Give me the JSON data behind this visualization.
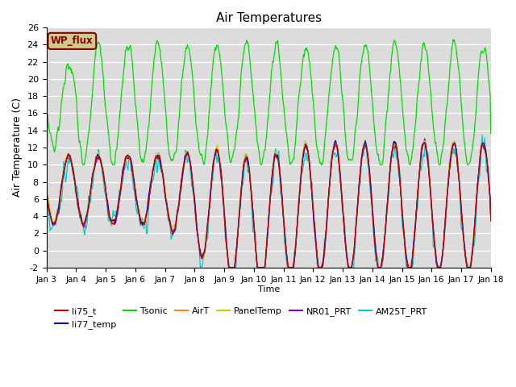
{
  "title": "Air Temperatures",
  "xlabel": "Time",
  "ylabel": "Air Temperature (C)",
  "ylim": [
    -2,
    26
  ],
  "yticks": [
    -2,
    0,
    2,
    4,
    6,
    8,
    10,
    12,
    14,
    16,
    18,
    20,
    22,
    24,
    26
  ],
  "xlim": [
    0,
    15
  ],
  "xtick_labels": [
    "Jan 3",
    "Jan 4",
    "Jan 5",
    "Jan 6",
    "Jan 7",
    "Jan 8",
    "Jan 9",
    "Jan 10",
    "Jan 11",
    "Jan 12",
    "Jan 13",
    "Jan 14",
    "Jan 15",
    "Jan 16",
    "Jan 17",
    "Jan 18"
  ],
  "xtick_positions": [
    0,
    1,
    2,
    3,
    4,
    5,
    6,
    7,
    8,
    9,
    10,
    11,
    12,
    13,
    14,
    15
  ],
  "bg_color": "#dcdcdc",
  "series": [
    {
      "name": "li75_t",
      "color": "#cc0000"
    },
    {
      "name": "li77_temp",
      "color": "#0000cc"
    },
    {
      "name": "Tsonic",
      "color": "#00dd00"
    },
    {
      "name": "AirT",
      "color": "#ff8800"
    },
    {
      "name": "PanelTemp",
      "color": "#cccc00"
    },
    {
      "name": "NR01_PRT",
      "color": "#8800cc"
    },
    {
      "name": "AM25T_PRT",
      "color": "#00cccc"
    }
  ],
  "wp_flux_label": "WP_flux",
  "wp_flux_bg": "#cccc88",
  "wp_flux_text_color": "#880000",
  "wp_flux_border_color": "#880000"
}
